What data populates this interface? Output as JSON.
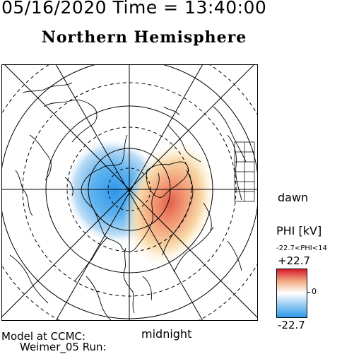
{
  "header": {
    "timestamp": "05/16/2020 Time = 13:40:00",
    "title": "Northern Hemisphere"
  },
  "map": {
    "orientation_labels": {
      "dawn": "dawn",
      "midnight": "midnight"
    }
  },
  "colorbar": {
    "title": "PHI [kV]",
    "range_text": "-22.7<PHI<14",
    "max_label": "+22.7",
    "zero_label": "0",
    "min_label": "-22.7",
    "colors": [
      "#d7192b",
      "#f2ac86",
      "#ffffff",
      "#92c9f2",
      "#2e98ea"
    ]
  },
  "footer": {
    "model_line": "Model at CCMC:",
    "run_line": "Weimer_05 Run:"
  }
}
